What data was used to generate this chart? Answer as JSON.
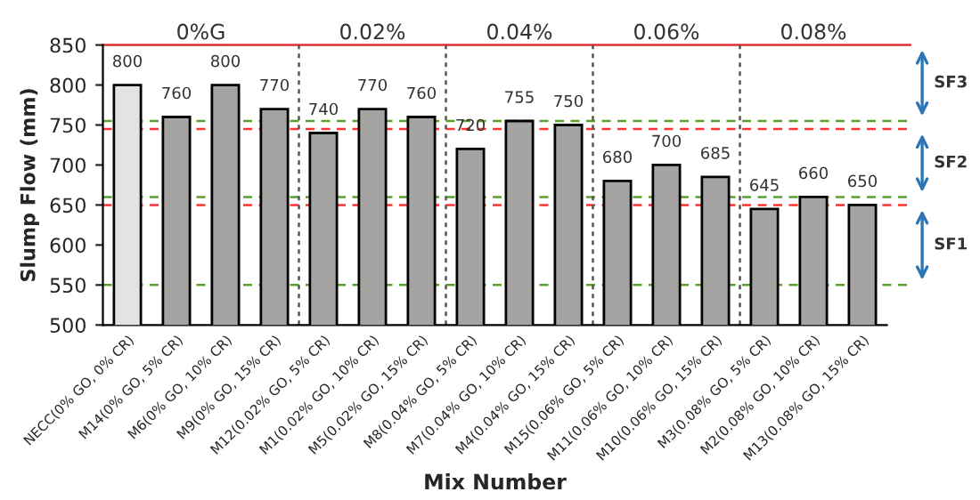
{
  "chart_data": {
    "type": "bar",
    "xlabel": "Mix Number",
    "ylabel": "Slump Flow (mm)",
    "categories": [
      "NECC(0% GO, 0% CR)",
      "M14(0% GO, 5% CR)",
      "M6(0% GO, 10% CR)",
      "M9(0% GO, 15% CR)",
      "M12(0.02% GO, 5% CR)",
      "M1(0.02% GO, 10% CR)",
      "M5(0.02% GO, 15% CR)",
      "M8(0.04% GO, 5% CR)",
      "M7(0.04% GO, 10% CR)",
      "M4(0.04% GO, 15% CR)",
      "M15(0.06% GO, 5% CR)",
      "M11(0.06% GO, 10% CR)",
      "M10(0.06% GO, 15% CR)",
      "M3(0.08% GO, 5% CR)",
      "M2(0.08% GO, 10% CR)",
      "M13(0.08% GO, 15% CR)"
    ],
    "values": [
      800,
      760,
      800,
      770,
      740,
      770,
      760,
      720,
      755,
      750,
      680,
      700,
      685,
      645,
      660,
      650
    ],
    "colors": [
      "#e3e3e3",
      "#a6a3a3",
      "#a6a3a3",
      "#a6a3a3",
      "#a6a3a3",
      "#a6a3a3",
      "#a6a3a3",
      "#a6a3a3",
      "#a6a3a3",
      "#a6a3a3",
      "#a6a3a3",
      "#a6a3a3",
      "#a6a3a3",
      "#a6a3a3",
      "#a6a3a3",
      "#a6a3a3"
    ],
    "data_labels": true,
    "ylim": [
      500,
      850
    ],
    "yticks": [
      500,
      550,
      600,
      650,
      700,
      750,
      800,
      850
    ],
    "ref_lines": [
      {
        "axis": "y",
        "value": 850,
        "color": "#e03030",
        "line_style": "solid"
      },
      {
        "axis": "y",
        "value": 755,
        "color": "#5aa02c",
        "line_style": "dashed"
      },
      {
        "axis": "y",
        "value": 745,
        "color": "#ff3333",
        "line_style": "dashed"
      },
      {
        "axis": "y",
        "value": 660,
        "color": "#5aa02c",
        "line_style": "dashed"
      },
      {
        "axis": "y",
        "value": 650,
        "color": "#ff3333",
        "line_style": "dashed"
      },
      {
        "axis": "y",
        "value": 550,
        "color": "#5aa02c",
        "line_style": "dashed"
      }
    ],
    "annotations": [
      "0%G",
      "0.02%",
      "0.04%",
      "0.06%",
      "0.08%",
      "SF1",
      "SF2",
      "SF3"
    ],
    "grid": false,
    "legend": false
  }
}
